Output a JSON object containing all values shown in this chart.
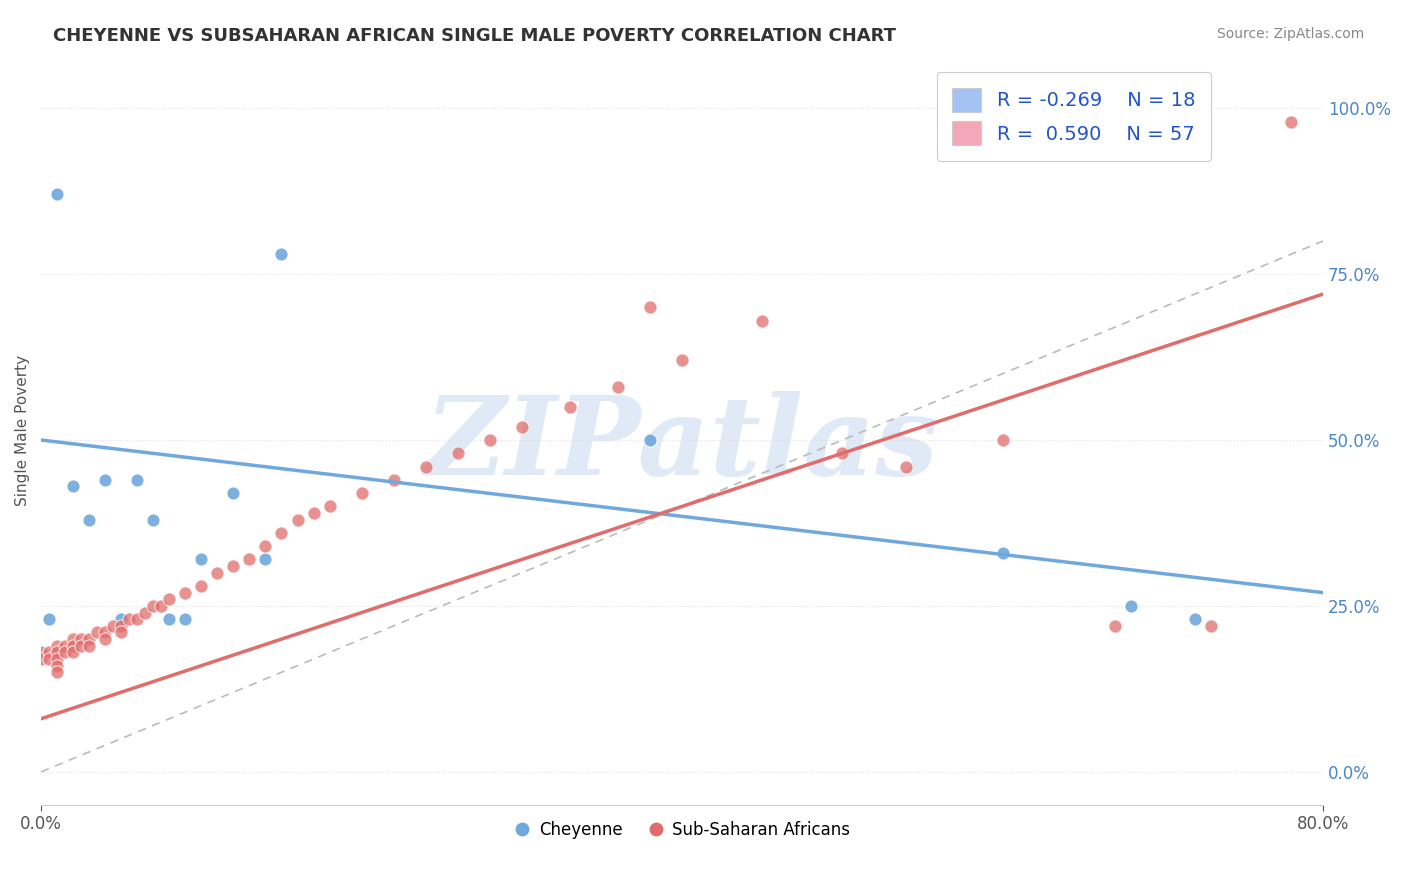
{
  "title": "CHEYENNE VS SUBSAHARAN AFRICAN SINGLE MALE POVERTY CORRELATION CHART",
  "source": "Source: ZipAtlas.com",
  "ylabel": "Single Male Poverty",
  "xlim": [
    0.0,
    0.8
  ],
  "ylim": [
    -0.05,
    1.08
  ],
  "xticks": [
    0.0,
    0.8
  ],
  "xticklabels": [
    "0.0%",
    "80.0%"
  ],
  "yticks_right": [
    0.0,
    0.25,
    0.5,
    0.75,
    1.0
  ],
  "ytick_right_labels": [
    "0.0%",
    "25.0%",
    "50.0%",
    "75.0%",
    "100.0%"
  ],
  "blue_color": "#6fa8dc",
  "pink_color": "#e06c6c",
  "blue_fill": "#a4c2f4",
  "pink_fill": "#f4a7b9",
  "watermark": "ZIPatlas",
  "cheyenne_x": [
    0.005,
    0.01,
    0.02,
    0.03,
    0.04,
    0.05,
    0.06,
    0.07,
    0.08,
    0.09,
    0.1,
    0.12,
    0.14,
    0.38,
    0.6,
    0.68,
    0.72,
    0.15
  ],
  "cheyenne_y": [
    0.23,
    0.87,
    0.43,
    0.38,
    0.44,
    0.23,
    0.44,
    0.38,
    0.23,
    0.23,
    0.32,
    0.42,
    0.32,
    0.5,
    0.33,
    0.25,
    0.23,
    0.78
  ],
  "subsaharan_x": [
    0.0,
    0.0,
    0.005,
    0.005,
    0.01,
    0.01,
    0.01,
    0.01,
    0.01,
    0.015,
    0.015,
    0.02,
    0.02,
    0.02,
    0.025,
    0.025,
    0.03,
    0.03,
    0.035,
    0.04,
    0.04,
    0.045,
    0.05,
    0.05,
    0.055,
    0.06,
    0.065,
    0.07,
    0.075,
    0.08,
    0.09,
    0.1,
    0.11,
    0.12,
    0.13,
    0.14,
    0.15,
    0.16,
    0.17,
    0.18,
    0.2,
    0.22,
    0.24,
    0.26,
    0.28,
    0.3,
    0.33,
    0.36,
    0.4,
    0.45,
    0.5,
    0.54,
    0.6,
    0.67,
    0.73,
    0.78,
    0.38
  ],
  "subsaharan_y": [
    0.18,
    0.17,
    0.18,
    0.17,
    0.19,
    0.18,
    0.17,
    0.16,
    0.15,
    0.19,
    0.18,
    0.2,
    0.19,
    0.18,
    0.2,
    0.19,
    0.2,
    0.19,
    0.21,
    0.21,
    0.2,
    0.22,
    0.22,
    0.21,
    0.23,
    0.23,
    0.24,
    0.25,
    0.25,
    0.26,
    0.27,
    0.28,
    0.3,
    0.31,
    0.32,
    0.34,
    0.36,
    0.38,
    0.39,
    0.4,
    0.42,
    0.44,
    0.46,
    0.48,
    0.5,
    0.52,
    0.55,
    0.58,
    0.62,
    0.68,
    0.48,
    0.46,
    0.5,
    0.22,
    0.22,
    0.98,
    0.7
  ],
  "blue_trend_x": [
    0.0,
    0.8
  ],
  "blue_trend_y": [
    0.5,
    0.27
  ],
  "pink_trend_x": [
    0.0,
    0.8
  ],
  "pink_trend_y": [
    0.08,
    0.72
  ],
  "dashed_line_x": [
    0.0,
    0.8
  ],
  "dashed_line_y": [
    0.0,
    0.8
  ],
  "grid_color": "#e0e0e0",
  "grid_style": "dotted"
}
